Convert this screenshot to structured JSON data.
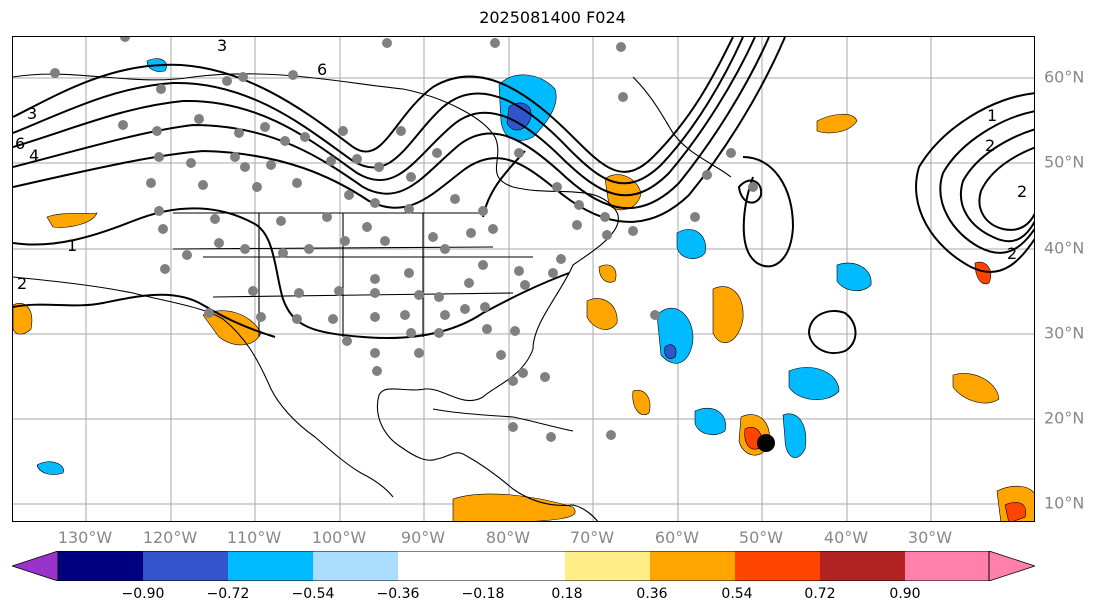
{
  "title": "2025081400 F024",
  "lon_labels": [
    "130°W",
    "120°W",
    "110°W",
    "100°W",
    "90°W",
    "80°W",
    "70°W",
    "60°W",
    "50°W",
    "40°W",
    "30°W"
  ],
  "lat_labels": [
    "60°N",
    "50°N",
    "40°N",
    "30°N",
    "20°N",
    "10°N"
  ],
  "contour_labels": [
    "3",
    "6",
    "3",
    "6",
    "4",
    "1",
    "2",
    "1",
    "2",
    "2",
    "2"
  ],
  "colorbar": {
    "ticks": [
      "−0.90",
      "−0.72",
      "−0.54",
      "−0.36",
      "−0.18",
      "0.18",
      "0.36",
      "0.54",
      "0.72",
      "0.90"
    ],
    "colors": [
      "#9933cc",
      "#000080",
      "#3355cc",
      "#00bbff",
      "#aaddff",
      "#ffffff",
      "#ffee88",
      "#ffa500",
      "#ff4400",
      "#b22222",
      "#ff80aa"
    ]
  }
}
